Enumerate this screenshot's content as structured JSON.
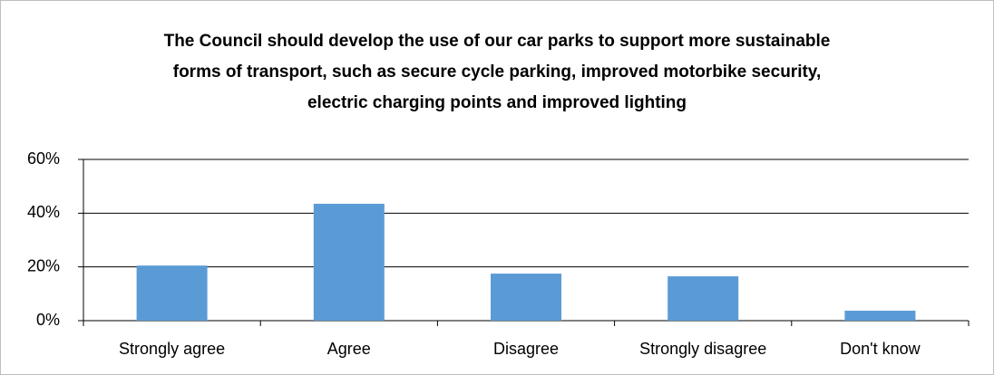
{
  "chart_data": {
    "type": "bar",
    "title": [
      "The Council should develop the use of our car parks to support more sustainable",
      "forms of transport, such as secure cycle parking, improved motorbike security,",
      "electric charging points and improved lighting"
    ],
    "categories": [
      "Strongly agree",
      "Agree",
      "Disagree",
      "Strongly disagree",
      "Don't know"
    ],
    "values": [
      20.5,
      43.5,
      17.5,
      16.5,
      3.7
    ],
    "color": "#5b9bd5",
    "ylim": [
      0,
      60
    ],
    "yticks": [
      {
        "value": 0,
        "label": "0%"
      },
      {
        "value": 20,
        "label": "20%"
      },
      {
        "value": 40,
        "label": "40%"
      },
      {
        "value": 60,
        "label": "60%"
      }
    ],
    "grid": true
  }
}
